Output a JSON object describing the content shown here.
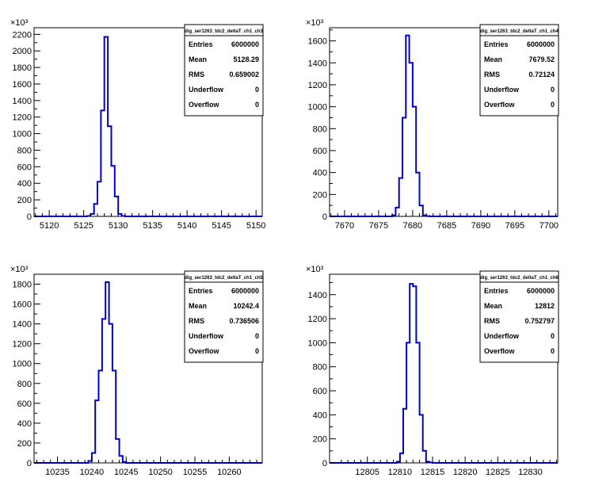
{
  "chart_data": [
    {
      "type": "histogram",
      "title": "dig_ser1263_tdc2_deltaT_ch1_ch3",
      "exponent_label": "×10³",
      "xlim": [
        5117.8,
        5150.9
      ],
      "ylim": [
        0,
        2280
      ],
      "xticks": [
        "5120",
        "5125",
        "5130",
        "5135",
        "5140",
        "5145",
        "5150"
      ],
      "yticks": [
        "0",
        "200",
        "400",
        "600",
        "800",
        "1000",
        "1200",
        "1400",
        "1600",
        "1800",
        "2000",
        "2200"
      ],
      "bin_width": 0.5,
      "bins_x": [
        5125.5,
        5126.0,
        5126.5,
        5127.0,
        5127.5,
        5128.0,
        5128.5,
        5129.0,
        5129.5,
        5130.0,
        5130.5
      ],
      "bins_y": [
        5,
        30,
        150,
        420,
        1280,
        2170,
        1090,
        610,
        240,
        30,
        5
      ],
      "stats": {
        "Entries": "6000000",
        "Mean": "5128.29",
        "RMS": "0.659002",
        "Underflow": "0",
        "Overflow": "0"
      }
    },
    {
      "type": "histogram",
      "title": "dig_ser1263_tdc2_deltaT_ch1_ch4",
      "exponent_label": "×10³",
      "xlim": [
        7667.8,
        7701.3
      ],
      "ylim": [
        0,
        1720
      ],
      "xticks": [
        "7670",
        "7675",
        "7680",
        "7685",
        "7690",
        "7695",
        "7700"
      ],
      "yticks": [
        "0",
        "200",
        "400",
        "600",
        "800",
        "1000",
        "1200",
        "1400",
        "1600"
      ],
      "bin_width": 0.5,
      "bins_x": [
        7677.0,
        7677.5,
        7678.0,
        7678.5,
        7679.0,
        7679.5,
        7680.0,
        7680.5,
        7681.0,
        7681.5,
        7682.0
      ],
      "bins_y": [
        10,
        80,
        350,
        900,
        1650,
        1400,
        1000,
        400,
        100,
        10,
        3
      ],
      "stats": {
        "Entries": "6000000",
        "Mean": "7679.52",
        "RMS": "0.72124",
        "Underflow": "0",
        "Overflow": "0"
      }
    },
    {
      "type": "histogram",
      "title": "dig_ser1263_tdc2_deltaT_ch1_ch5",
      "exponent_label": "×10³",
      "xlim": [
        10231.6,
        10264.8
      ],
      "ylim": [
        0,
        1900
      ],
      "xticks": [
        "10235",
        "10240",
        "10245",
        "10250",
        "10255",
        "10260"
      ],
      "yticks": [
        "0",
        "200",
        "400",
        "600",
        "800",
        "1000",
        "1200",
        "1400",
        "1600",
        "1800"
      ],
      "bin_width": 0.5,
      "bins_x": [
        10239.5,
        10240.0,
        10240.5,
        10241.0,
        10241.5,
        10242.0,
        10242.5,
        10243.0,
        10243.5,
        10244.0,
        10244.5
      ],
      "bins_y": [
        20,
        100,
        630,
        930,
        1450,
        1820,
        1400,
        930,
        240,
        70,
        10
      ],
      "stats": {
        "Entries": "6000000",
        "Mean": "10242.4",
        "RMS": "0.736506",
        "Underflow": "0",
        "Overflow": "0"
      }
    },
    {
      "type": "histogram",
      "title": "dig_ser1263_tdc2_deltaT_ch1_ch6",
      "exponent_label": "×10³",
      "xlim": [
        12799.2,
        12834.2
      ],
      "ylim": [
        0,
        1570
      ],
      "xticks": [
        "12805",
        "12810",
        "12815",
        "12820",
        "12825",
        "12830"
      ],
      "yticks": [
        "0",
        "200",
        "400",
        "600",
        "800",
        "1000",
        "1200",
        "1400"
      ],
      "bin_width": 0.5,
      "bins_x": [
        12809.5,
        12810.0,
        12810.5,
        12811.0,
        12811.5,
        12812.0,
        12812.5,
        12813.0,
        12813.5,
        12814.0,
        12814.5
      ],
      "bins_y": [
        10,
        80,
        450,
        1000,
        1490,
        1470,
        1000,
        400,
        100,
        10,
        3
      ],
      "stats": {
        "Entries": "6000000",
        "Mean": "12812",
        "RMS": "0.752797",
        "Underflow": "0",
        "Overflow": "0"
      }
    }
  ]
}
